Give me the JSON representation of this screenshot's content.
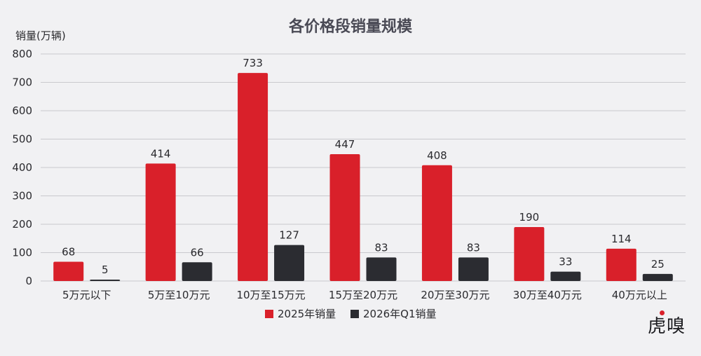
{
  "chart_data": {
    "type": "bar",
    "title": "各价格段销量规模",
    "ylabel": "销量(万辆)",
    "xlabel": "",
    "ylim": [
      0,
      800
    ],
    "yticks": [
      0,
      100,
      200,
      300,
      400,
      500,
      600,
      700,
      800
    ],
    "grid": true,
    "legend_position": "bottom-center",
    "categories": [
      "5万元以下",
      "5万至10万元",
      "10万至15万元",
      "15万至20万元",
      "20万至30万元",
      "30万至40万元",
      "40万元以上"
    ],
    "series": [
      {
        "name": "2025年销量",
        "color": "#d9202a",
        "values": [
          68,
          414,
          733,
          447,
          408,
          190,
          114
        ]
      },
      {
        "name": "2026年Q1销量",
        "color": "#2b2c31",
        "values": [
          5,
          66,
          127,
          83,
          83,
          33,
          25
        ]
      }
    ]
  },
  "watermark": "虎嗅",
  "colors": {
    "background": "#f1f1f3",
    "grid": "#c9c9cd",
    "text": "#2a2a2e",
    "title": "#4a4a55"
  }
}
